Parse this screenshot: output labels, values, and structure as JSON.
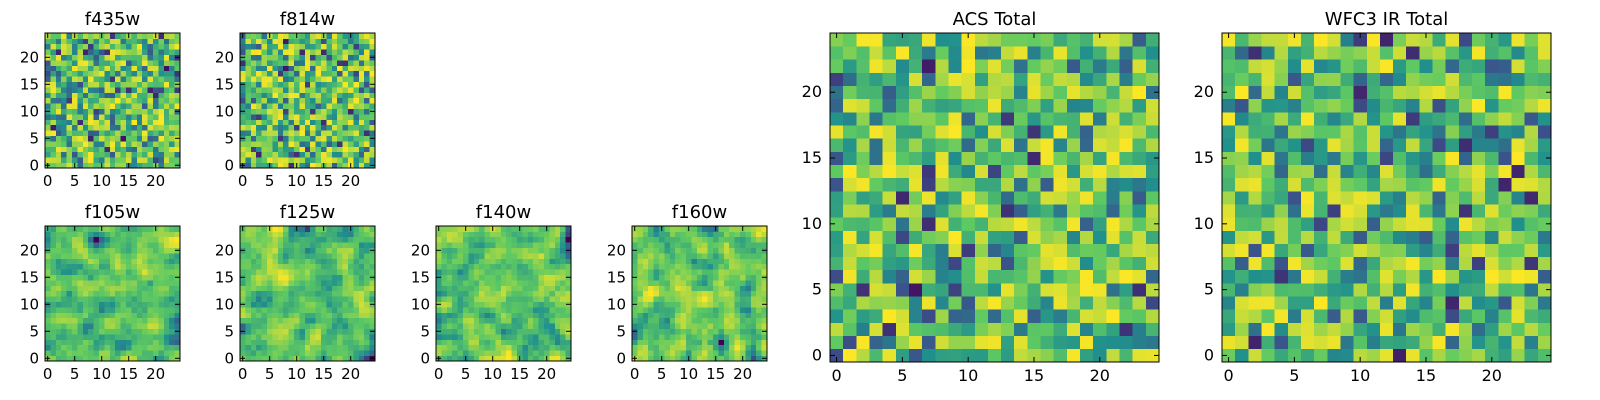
{
  "figure": {
    "background": "#ffffff",
    "colormap": "viridis",
    "colormap_stops": [
      "#440154",
      "#3b528b",
      "#21918c",
      "#5ec962",
      "#fde725"
    ]
  },
  "chart_data": [
    {
      "type": "heatmap",
      "title": "f435w",
      "size": 25,
      "seed": 11,
      "smooth": 0,
      "bias": 0.72,
      "xticks": [
        0,
        5,
        10,
        15,
        20
      ],
      "yticks": [
        0,
        5,
        10,
        15,
        20
      ],
      "xlim": [
        0,
        24
      ],
      "ylim": [
        0,
        24
      ]
    },
    {
      "type": "heatmap",
      "title": "f814w",
      "size": 25,
      "seed": 23,
      "smooth": 0,
      "bias": 0.72,
      "xticks": [
        0,
        5,
        10,
        15,
        20
      ],
      "yticks": [
        0,
        5,
        10,
        15,
        20
      ],
      "xlim": [
        0,
        24
      ],
      "ylim": [
        0,
        24
      ]
    },
    {
      "type": "heatmap",
      "title": "f105w",
      "size": 25,
      "seed": 37,
      "smooth": 1,
      "bias": 0.66,
      "xticks": [
        0,
        5,
        10,
        15,
        20
      ],
      "yticks": [
        0,
        5,
        10,
        15,
        20
      ],
      "xlim": [
        0,
        24
      ],
      "ylim": [
        0,
        24
      ]
    },
    {
      "type": "heatmap",
      "title": "f125w",
      "size": 25,
      "seed": 41,
      "smooth": 1,
      "bias": 0.7,
      "xticks": [
        0,
        5,
        10,
        15,
        20
      ],
      "yticks": [
        0,
        5,
        10,
        15,
        20
      ],
      "xlim": [
        0,
        24
      ],
      "ylim": [
        0,
        24
      ]
    },
    {
      "type": "heatmap",
      "title": "f140w",
      "size": 25,
      "seed": 53,
      "smooth": 1,
      "bias": 0.66,
      "xticks": [
        0,
        5,
        10,
        15,
        20
      ],
      "yticks": [
        0,
        5,
        10,
        15,
        20
      ],
      "xlim": [
        0,
        24
      ],
      "ylim": [
        0,
        24
      ]
    },
    {
      "type": "heatmap",
      "title": "f160w",
      "size": 25,
      "seed": 67,
      "smooth": 1,
      "bias": 0.66,
      "xticks": [
        0,
        5,
        10,
        15,
        20
      ],
      "yticks": [
        0,
        5,
        10,
        15,
        20
      ],
      "xlim": [
        0,
        24
      ],
      "ylim": [
        0,
        24
      ]
    },
    {
      "type": "heatmap",
      "title": "ACS Total",
      "size": 25,
      "seed": 79,
      "smooth": 0,
      "bias": 0.72,
      "xticks": [
        0,
        5,
        10,
        15,
        20
      ],
      "yticks": [
        0,
        5,
        10,
        15,
        20
      ],
      "xlim": [
        0,
        24
      ],
      "ylim": [
        0,
        24
      ]
    },
    {
      "type": "heatmap",
      "title": "WFC3 IR Total",
      "size": 25,
      "seed": 97,
      "smooth": 0,
      "bias": 0.68,
      "xticks": [
        0,
        5,
        10,
        15,
        20
      ],
      "yticks": [
        0,
        5,
        10,
        15,
        20
      ],
      "xlim": [
        0,
        24
      ],
      "ylim": [
        0,
        24
      ]
    }
  ]
}
